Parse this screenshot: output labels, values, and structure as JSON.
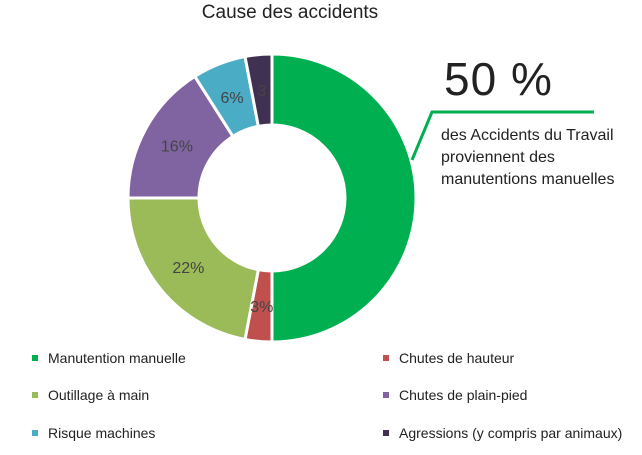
{
  "chart_data": {
    "type": "pie",
    "title": "Cause des accidents",
    "slices": [
      {
        "name": "Manutention manuelle",
        "value": 50,
        "label": "",
        "color": "#00b050"
      },
      {
        "name": "Chutes de hauteur",
        "value": 3,
        "label": "3%",
        "color": "#c0504d"
      },
      {
        "name": "Outillage à main",
        "value": 22,
        "label": "22%",
        "color": "#9bbb59"
      },
      {
        "name": "Chutes de plain-pied",
        "value": 16,
        "label": "16%",
        "color": "#8064a2"
      },
      {
        "name": "Risque machines",
        "value": 6,
        "label": "6%",
        "color": "#4bacc6"
      },
      {
        "name": "Agressions (y compris par animaux)",
        "value": 3,
        "label": "3",
        "color": "#403152"
      }
    ],
    "callout": {
      "value": "50 %",
      "text": "des Accidents du Travail proviennent des manutentions manuelles",
      "color": "#00b050"
    },
    "legend_position": "bottom"
  }
}
